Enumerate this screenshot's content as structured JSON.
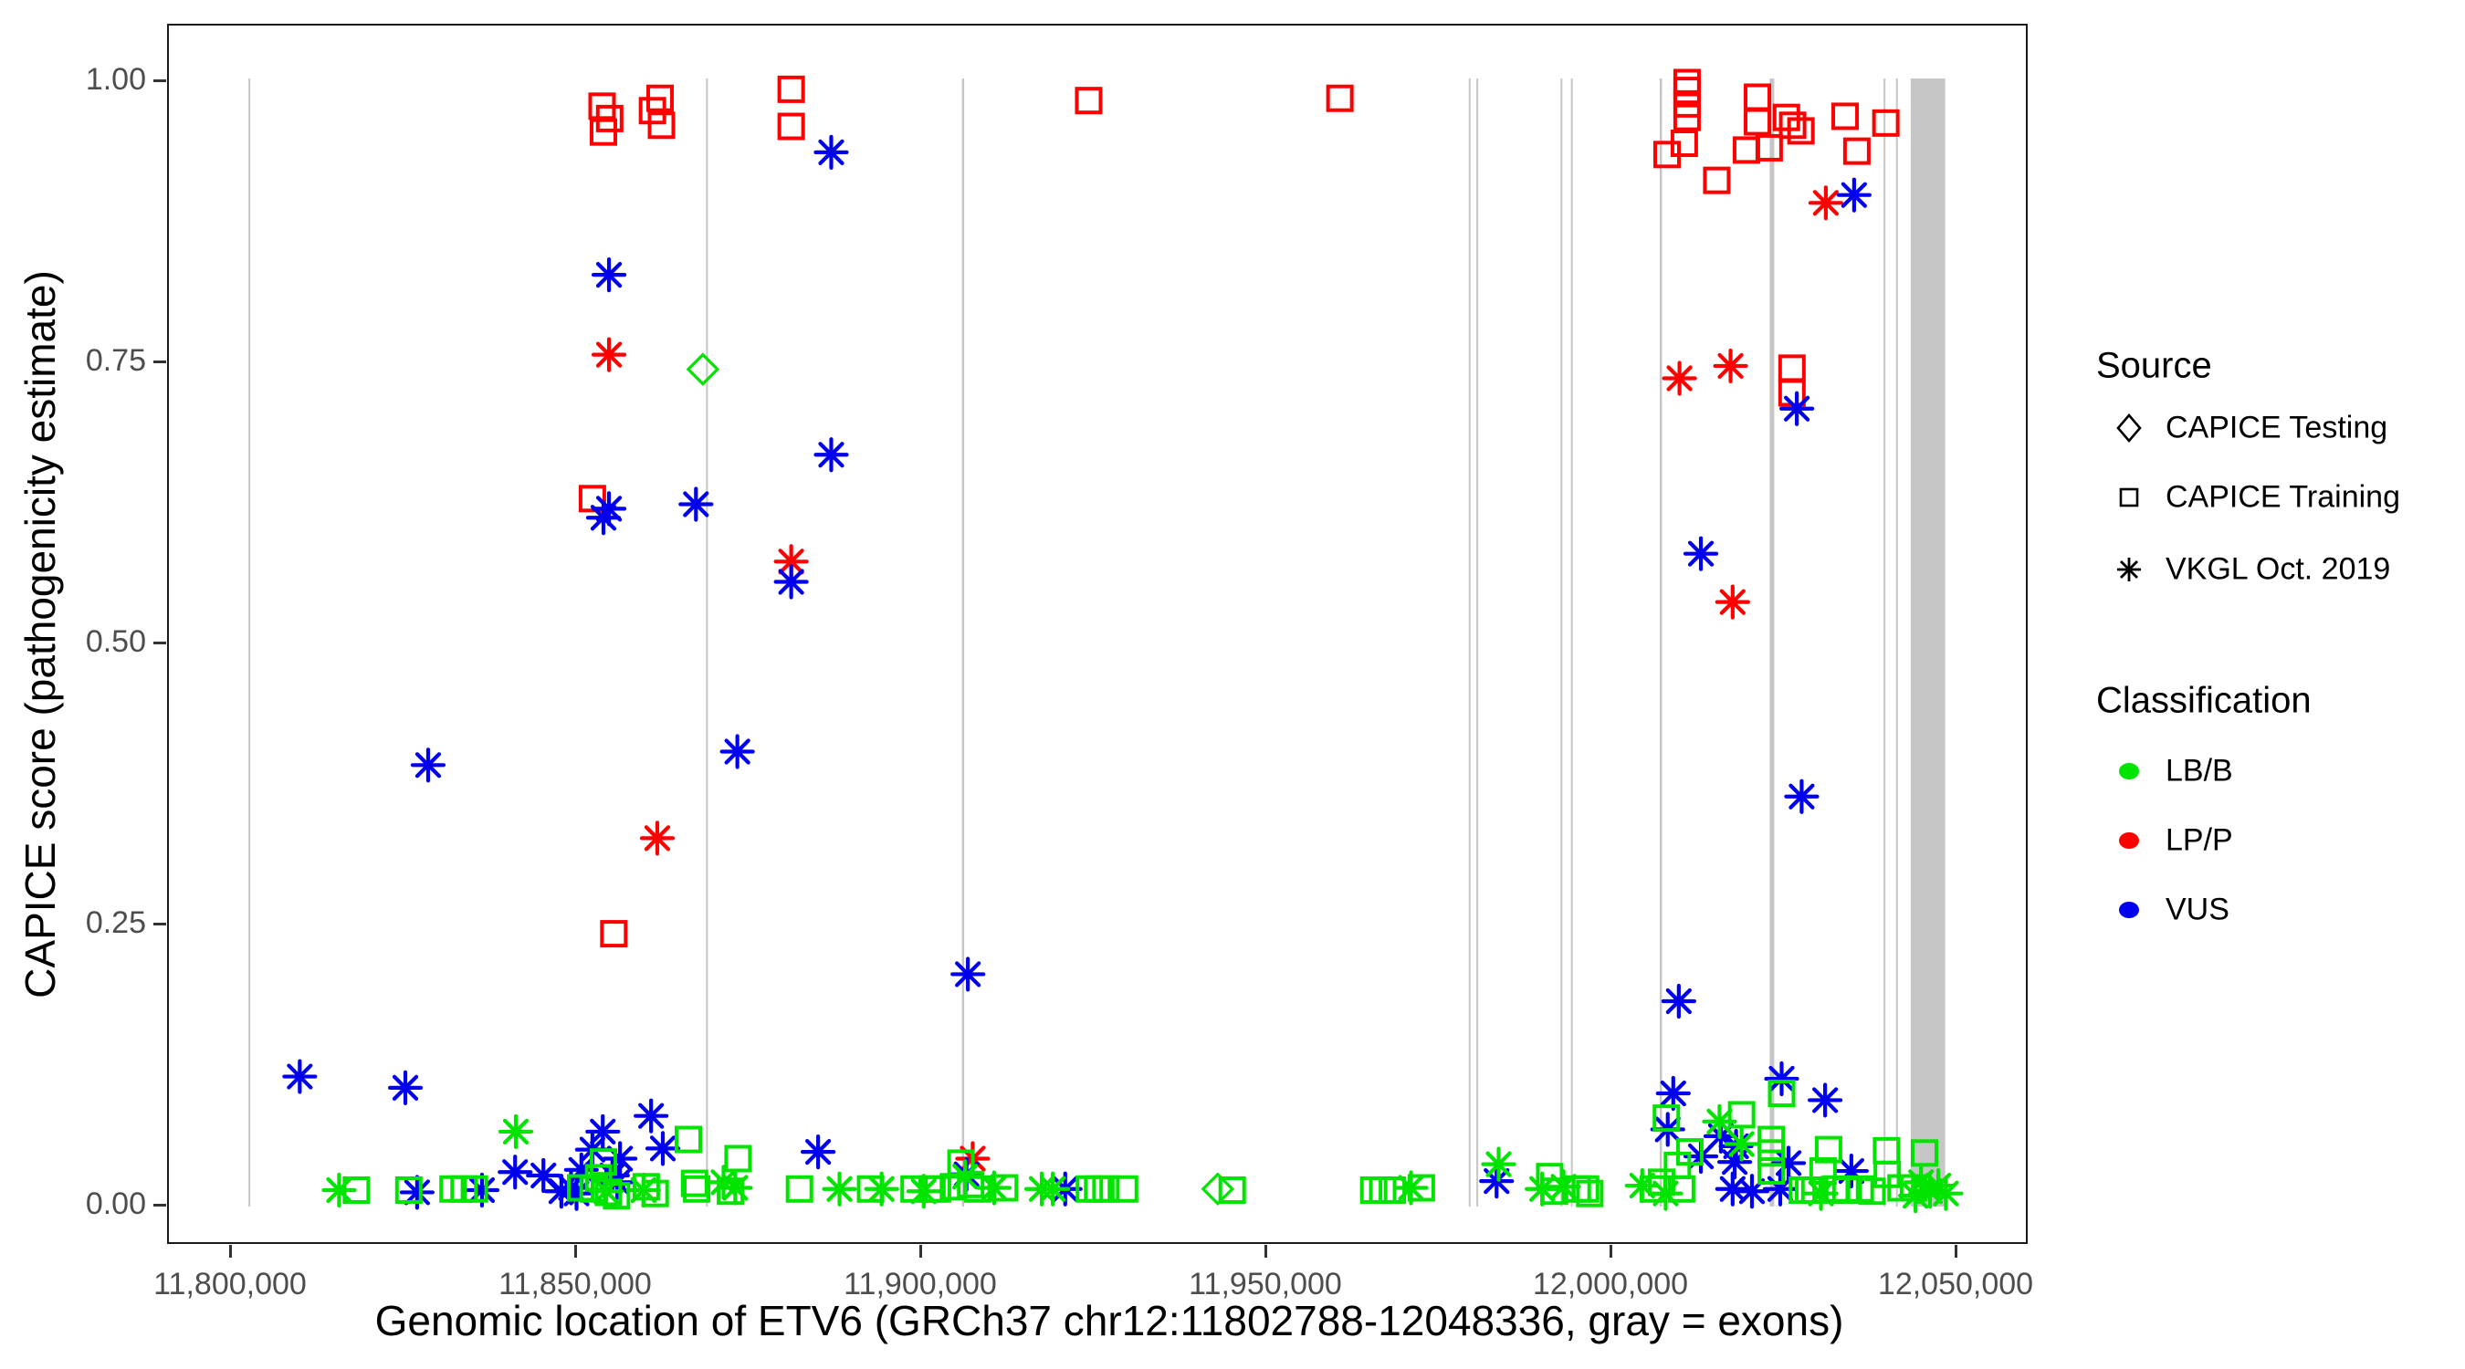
{
  "chart_data": {
    "type": "scatter",
    "title": "",
    "xlabel": "Genomic location of ETV6 (GRCh37 chr12:11802788-12048336, gray = exons)",
    "ylabel": "CAPICE score (pathogenicity estimate)",
    "x_tick_labels": [
      "11,800,000",
      "11,850,000",
      "11,900,000",
      "11,950,000",
      "12,000,000",
      "12,050,000"
    ],
    "x_tick_values": [
      11800000,
      11850000,
      11900000,
      11950000,
      12000000,
      12050000
    ],
    "y_tick_labels": [
      "0.00",
      "0.25",
      "0.50",
      "0.75",
      "1.00"
    ],
    "y_tick_values": [
      0.0,
      0.25,
      0.5,
      0.75,
      1.0
    ],
    "xlim": [
      11790500,
      12060500
    ],
    "ylim": [
      -0.053,
      1.057
    ],
    "grid": "off",
    "legend_position": "right",
    "exon_note": "gray vertical bands mark exon locations",
    "exon_lines": [
      {
        "pos": 11802800,
        "w": 2
      },
      {
        "pos": 11869100,
        "w": 2
      },
      {
        "pos": 11906200,
        "w": 2.5
      },
      {
        "pos": 11979600,
        "w": 2
      },
      {
        "pos": 11980700,
        "w": 2
      },
      {
        "pos": 11992900,
        "w": 2
      },
      {
        "pos": 11994400,
        "w": 2
      },
      {
        "pos": 12007300,
        "w": 2.5
      },
      {
        "pos": 12023400,
        "w": 5
      },
      {
        "pos": 12039700,
        "w": 2
      },
      {
        "pos": 12041500,
        "w": 2
      }
    ],
    "exon_band": {
      "start": 12043500,
      "end": 12048500
    },
    "colors": {
      "LB/B": "#00e400",
      "LP/P": "#ff0000",
      "VUS": "#0000ee",
      "exon_gray": "#c6c6c6"
    },
    "series": [
      {
        "name": "CAPICE Training / LP-P",
        "shape": "square",
        "class": "LP/P",
        "points": [
          [
            11853900,
            0.977
          ],
          [
            11855000,
            0.966
          ],
          [
            11854100,
            0.954
          ],
          [
            11862300,
            0.984
          ],
          [
            11861200,
            0.973
          ],
          [
            11862500,
            0.96
          ],
          [
            11881300,
            0.992
          ],
          [
            11881300,
            0.959
          ],
          [
            11852500,
            0.628
          ],
          [
            11855600,
            0.241
          ],
          [
            11924400,
            0.982
          ],
          [
            11960800,
            0.984
          ],
          [
            12011100,
            0.998
          ],
          [
            12011100,
            0.991
          ],
          [
            12011100,
            0.979
          ],
          [
            12011100,
            0.967
          ],
          [
            12010700,
            0.944
          ],
          [
            12008200,
            0.934
          ],
          [
            12021300,
            0.985
          ],
          [
            12021300,
            0.963
          ],
          [
            12019700,
            0.938
          ],
          [
            12023000,
            0.94
          ],
          [
            12025500,
            0.967
          ],
          [
            12026400,
            0.96
          ],
          [
            12027600,
            0.955
          ],
          [
            12034000,
            0.968
          ],
          [
            12035700,
            0.937
          ],
          [
            12039900,
            0.962
          ],
          [
            12015400,
            0.911
          ],
          [
            12026300,
            0.744
          ],
          [
            12026300,
            0.722
          ]
        ]
      },
      {
        "name": "VKGL Oct. 2019 / LP-P",
        "shape": "asterisk",
        "class": "LP/P",
        "points": [
          [
            11854900,
            0.756
          ],
          [
            11861900,
            0.326
          ],
          [
            11907600,
            0.041
          ],
          [
            11881300,
            0.572
          ],
          [
            12031200,
            0.891
          ],
          [
            12010000,
            0.735
          ],
          [
            12017400,
            0.746
          ],
          [
            12017700,
            0.536
          ]
        ]
      },
      {
        "name": "CAPICE Testing / LB-B",
        "shape": "diamond",
        "class": "LB/B",
        "points": [
          [
            11868500,
            0.743
          ],
          [
            11943100,
            0.014
          ]
        ]
      },
      {
        "name": "VKGL Oct. 2019 / VUS",
        "shape": "asterisk",
        "class": "VUS",
        "points": [
          [
            11854900,
            0.827
          ],
          [
            11887100,
            0.936
          ],
          [
            11887100,
            0.667
          ],
          [
            11854900,
            0.619
          ],
          [
            11854100,
            0.611
          ],
          [
            11867500,
            0.623
          ],
          [
            11881300,
            0.554
          ],
          [
            11828700,
            0.391
          ],
          [
            11873500,
            0.403
          ],
          [
            11810100,
            0.114
          ],
          [
            11825400,
            0.104
          ],
          [
            11906900,
            0.205
          ],
          [
            12035300,
            0.898
          ],
          [
            12027000,
            0.708
          ],
          [
            12013100,
            0.579
          ],
          [
            12027700,
            0.363
          ],
          [
            12009900,
            0.181
          ],
          [
            12024800,
            0.112
          ],
          [
            12009100,
            0.099
          ],
          [
            12031100,
            0.093
          ],
          [
            12008300,
            0.067
          ],
          [
            12013100,
            0.043
          ],
          [
            12018000,
            0.038
          ],
          [
            12025800,
            0.037
          ],
          [
            12034900,
            0.03
          ],
          [
            12016000,
            0.061
          ],
          [
            12018200,
            0.052
          ],
          [
            11861000,
            0.079
          ],
          [
            11854000,
            0.065
          ],
          [
            11852500,
            0.049
          ],
          [
            11862700,
            0.05
          ],
          [
            11856500,
            0.041
          ],
          [
            11850900,
            0.031
          ],
          [
            11855400,
            0.026
          ],
          [
            11856100,
            0.02
          ],
          [
            11849400,
            0.015
          ],
          [
            11850200,
            0.01
          ],
          [
            11848000,
            0.012
          ],
          [
            11827100,
            0.011
          ],
          [
            11836500,
            0.013
          ],
          [
            11841300,
            0.029
          ],
          [
            11845400,
            0.026
          ],
          [
            11885200,
            0.047
          ],
          [
            11906700,
            0.027
          ],
          [
            11921000,
            0.014
          ],
          [
            11983500,
            0.021
          ],
          [
            12017700,
            0.014
          ],
          [
            12020500,
            0.012
          ],
          [
            12024600,
            0.014
          ]
        ]
      },
      {
        "name": "VKGL Oct. 2019 / LB-B",
        "shape": "asterisk",
        "class": "LB/B",
        "points": [
          [
            11815800,
            0.013
          ],
          [
            11841400,
            0.065
          ],
          [
            11854500,
            0.012
          ],
          [
            11859900,
            0.013
          ],
          [
            11871500,
            0.02
          ],
          [
            11873200,
            0.015
          ],
          [
            11888300,
            0.014
          ],
          [
            11894400,
            0.014
          ],
          [
            11900500,
            0.012
          ],
          [
            11906500,
            0.025
          ],
          [
            11910700,
            0.015
          ],
          [
            11917600,
            0.014
          ],
          [
            11919200,
            0.014
          ],
          [
            11971100,
            0.015
          ],
          [
            11983800,
            0.036
          ],
          [
            11990100,
            0.014
          ],
          [
            11993200,
            0.016
          ],
          [
            12004600,
            0.017
          ],
          [
            12008000,
            0.01
          ],
          [
            12015800,
            0.074
          ],
          [
            12019000,
            0.054
          ],
          [
            12030500,
            0.01
          ],
          [
            12045000,
            0.02
          ],
          [
            12046300,
            0.012
          ],
          [
            12047500,
            0.017
          ],
          [
            12048600,
            0.01
          ],
          [
            12044200,
            0.008
          ]
        ]
      },
      {
        "name": "CAPICE Training / LB-B",
        "shape": "square",
        "class": "LB/B",
        "points": [
          [
            11818300,
            0.013
          ],
          [
            11825900,
            0.013
          ],
          [
            11832300,
            0.014
          ],
          [
            11833900,
            0.014
          ],
          [
            11835400,
            0.014
          ],
          [
            11850800,
            0.015
          ],
          [
            11852600,
            0.014
          ],
          [
            11853400,
            0.024
          ],
          [
            11854100,
            0.038
          ],
          [
            11854800,
            0.011
          ],
          [
            11856000,
            0.008
          ],
          [
            11860300,
            0.016
          ],
          [
            11861600,
            0.01
          ],
          [
            11866400,
            0.058
          ],
          [
            11867300,
            0.019
          ],
          [
            11867600,
            0.014
          ],
          [
            11872500,
            0.012
          ],
          [
            11873600,
            0.041
          ],
          [
            11882500,
            0.014
          ],
          [
            11892800,
            0.014
          ],
          [
            11899100,
            0.014
          ],
          [
            11901700,
            0.014
          ],
          [
            11902500,
            0.014
          ],
          [
            11904800,
            0.016
          ],
          [
            11905900,
            0.037
          ],
          [
            11907300,
            0.018
          ],
          [
            11908300,
            0.014
          ],
          [
            11912200,
            0.015
          ],
          [
            11924500,
            0.014
          ],
          [
            11925700,
            0.014
          ],
          [
            11926900,
            0.014
          ],
          [
            11929600,
            0.014
          ],
          [
            11945200,
            0.013
          ],
          [
            11965700,
            0.013
          ],
          [
            11967000,
            0.013
          ],
          [
            11968400,
            0.013
          ],
          [
            11972600,
            0.015
          ],
          [
            11991200,
            0.025
          ],
          [
            11991900,
            0.012
          ],
          [
            11995200,
            0.014
          ],
          [
            11996400,
            0.014
          ],
          [
            11997000,
            0.01
          ],
          [
            12006200,
            0.014
          ],
          [
            12007400,
            0.02
          ],
          [
            12008100,
            0.077
          ],
          [
            12009700,
            0.035
          ],
          [
            12010300,
            0.014
          ],
          [
            12011500,
            0.047
          ],
          [
            12019000,
            0.08
          ],
          [
            12024800,
            0.099
          ],
          [
            12023300,
            0.058
          ],
          [
            12023300,
            0.046
          ],
          [
            12023300,
            0.03
          ],
          [
            12027800,
            0.013
          ],
          [
            12028700,
            0.013
          ],
          [
            12029600,
            0.013
          ],
          [
            12030800,
            0.03
          ],
          [
            12031600,
            0.049
          ],
          [
            12032600,
            0.014
          ],
          [
            12034100,
            0.013
          ],
          [
            12036200,
            0.014
          ],
          [
            12037900,
            0.012
          ],
          [
            12040000,
            0.048
          ],
          [
            12040100,
            0.027
          ],
          [
            12042100,
            0.015
          ],
          [
            12043900,
            0.015
          ],
          [
            12045500,
            0.046
          ]
        ]
      }
    ]
  },
  "legend": {
    "source_title": "Source",
    "source_items": [
      {
        "label": "CAPICE Testing",
        "shape": "diamond"
      },
      {
        "label": "CAPICE Training",
        "shape": "square"
      },
      {
        "label": "VKGL Oct. 2019",
        "shape": "asterisk"
      }
    ],
    "classification_title": "Classification",
    "classification_items": [
      {
        "label": "LB/B",
        "color": "#00e400"
      },
      {
        "label": "LP/P",
        "color": "#ff0000"
      },
      {
        "label": "VUS",
        "color": "#0000ee"
      }
    ]
  }
}
